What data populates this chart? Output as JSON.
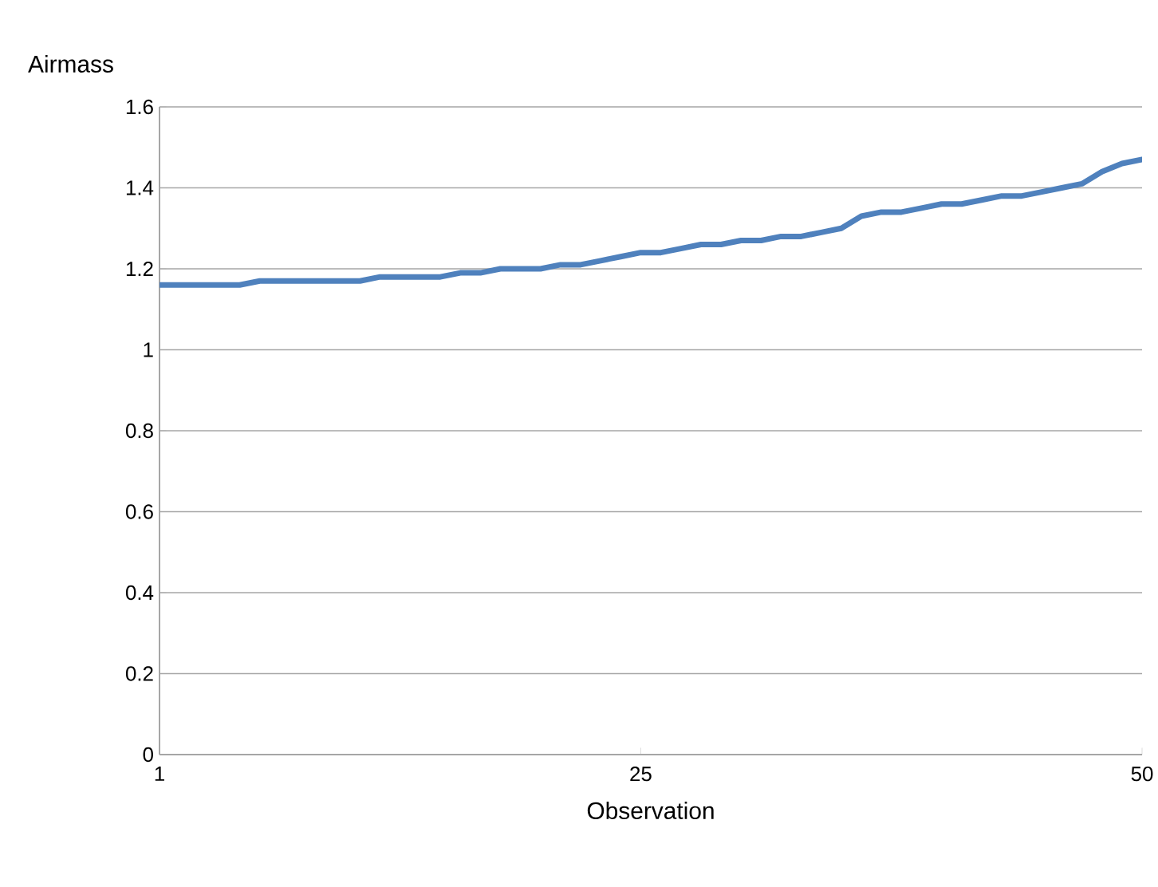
{
  "chart_data": {
    "type": "line",
    "ylabel": "Airmass",
    "xlabel": "Observation",
    "x": [
      1,
      2,
      3,
      4,
      5,
      6,
      7,
      8,
      9,
      10,
      11,
      12,
      13,
      14,
      15,
      16,
      17,
      18,
      19,
      20,
      21,
      22,
      23,
      24,
      25,
      26,
      27,
      28,
      29,
      30,
      31,
      32,
      33,
      34,
      35,
      36,
      37,
      38,
      39,
      40,
      41,
      42,
      43,
      44,
      45,
      46,
      47,
      48,
      49,
      50
    ],
    "series": [
      {
        "color": "#4f81bd",
        "values": [
          1.16,
          1.16,
          1.16,
          1.16,
          1.16,
          1.17,
          1.17,
          1.17,
          1.17,
          1.17,
          1.17,
          1.18,
          1.18,
          1.18,
          1.18,
          1.19,
          1.19,
          1.2,
          1.2,
          1.2,
          1.21,
          1.21,
          1.22,
          1.23,
          1.24,
          1.24,
          1.25,
          1.26,
          1.26,
          1.27,
          1.27,
          1.28,
          1.28,
          1.29,
          1.3,
          1.33,
          1.34,
          1.34,
          1.35,
          1.36,
          1.36,
          1.37,
          1.38,
          1.38,
          1.39,
          1.4,
          1.41,
          1.44,
          1.46,
          1.47
        ]
      }
    ],
    "xlim": [
      1,
      50
    ],
    "xticks": [
      1,
      25,
      50
    ],
    "ylim": [
      0,
      1.6
    ],
    "yticks": [
      0,
      0.2,
      0.4,
      0.6,
      0.8,
      1,
      1.2,
      1.4,
      1.6
    ],
    "grid": "y",
    "marker": "none",
    "line_style": "solid"
  }
}
